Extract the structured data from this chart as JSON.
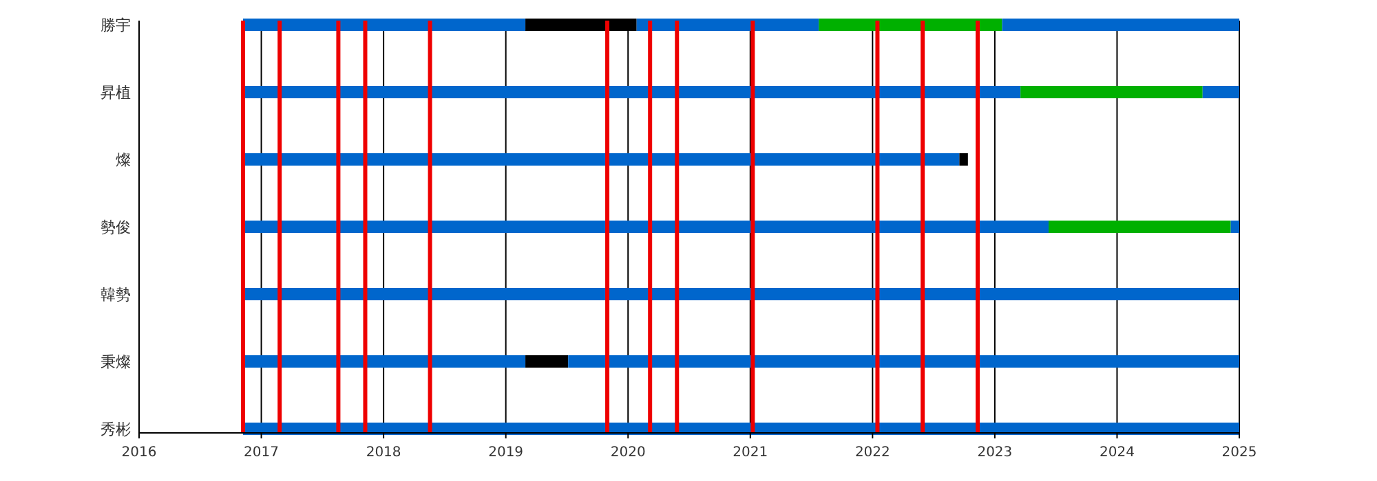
{
  "chart_data": {
    "type": "bar",
    "orientation": "horizontal",
    "categories": [
      "勝宇",
      "昇植",
      "燦",
      "勢俊",
      "韓勢",
      "秉燦",
      "秀彬"
    ],
    "series": [
      {
        "color": "#0066cc",
        "base": [
          2016.85,
          2016.85,
          2016.85,
          2016.85,
          2016.85,
          2016.85,
          2016.85
        ],
        "values": [
          2.31,
          6.36,
          5.86,
          6.59,
          8.15,
          2.31,
          8.15
        ]
      },
      {
        "color": "#000000",
        "base": [
          2019.16,
          null,
          2022.71,
          null,
          null,
          2019.16,
          null
        ],
        "values": [
          0.91,
          null,
          0.07,
          null,
          null,
          0.35,
          null
        ]
      },
      {
        "color": "#0066cc",
        "base": [
          2020.07,
          null,
          null,
          null,
          null,
          2019.51,
          null
        ],
        "values": [
          1.49,
          null,
          null,
          null,
          null,
          5.49,
          null
        ]
      },
      {
        "color": "#00b000",
        "base": [
          2021.56,
          2023.21,
          null,
          2023.44,
          null,
          null,
          null
        ],
        "values": [
          1.5,
          1.49,
          null,
          1.49,
          null,
          null,
          null
        ]
      },
      {
        "color": "#0066cc",
        "base": [
          2023.06,
          2024.7,
          null,
          2024.93,
          null,
          null,
          null
        ],
        "values": [
          1.94,
          0.3,
          null,
          0.07,
          null,
          null,
          null
        ]
      }
    ],
    "xlim": [
      2016,
      2025
    ],
    "xticks": [
      2016,
      2017,
      2018,
      2019,
      2020,
      2021,
      2022,
      2023,
      2024,
      2025
    ],
    "grid": "x",
    "ref_lines": [
      {
        "axis": "x",
        "value": 2016.85,
        "color": "#ee0000"
      },
      {
        "axis": "x",
        "value": 2017.15,
        "color": "#ee0000"
      },
      {
        "axis": "x",
        "value": 2017.63,
        "color": "#ee0000"
      },
      {
        "axis": "x",
        "value": 2017.85,
        "color": "#ee0000"
      },
      {
        "axis": "x",
        "value": 2018.38,
        "color": "#ee0000"
      },
      {
        "axis": "x",
        "value": 2019.83,
        "color": "#ee0000"
      },
      {
        "axis": "x",
        "value": 2020.18,
        "color": "#ee0000"
      },
      {
        "axis": "x",
        "value": 2020.4,
        "color": "#ee0000"
      },
      {
        "axis": "x",
        "value": 2021.02,
        "color": "#ee0000"
      },
      {
        "axis": "x",
        "value": 2022.04,
        "color": "#ee0000"
      },
      {
        "axis": "x",
        "value": 2022.41,
        "color": "#ee0000"
      },
      {
        "axis": "x",
        "value": 2022.86,
        "color": "#ee0000"
      }
    ]
  }
}
